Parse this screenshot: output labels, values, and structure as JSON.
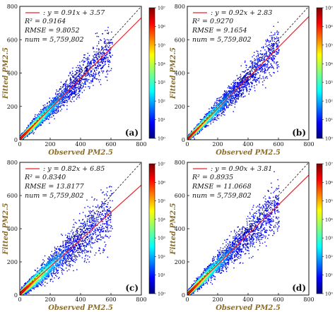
{
  "chart_data": [
    {
      "type": "scatter",
      "subtype": "density-scatter",
      "panel_label": "(a)",
      "xlabel": "Observed PM2.5",
      "ylabel": "Fitted PM2.5",
      "xlim": [
        0,
        800
      ],
      "ylim": [
        0,
        800
      ],
      "xticks": [
        "0",
        "200",
        "400",
        "600",
        "800"
      ],
      "yticks": [
        "0",
        "200",
        "400",
        "600",
        "800"
      ],
      "fit_line": {
        "label": "y = 0.91x + 3.57",
        "slope": 0.91,
        "intercept": 3.57,
        "color": "#e8242a"
      },
      "reference_line": {
        "label": "1:1",
        "slope": 1,
        "intercept": 0,
        "style": "dashed"
      },
      "stats": {
        "r2": "R² = 0.9164",
        "rmse": "RMSE = 9.8052",
        "num": "num = 5,759,802"
      },
      "density_colorbar": {
        "scale": "log",
        "range": [
          1,
          10000000
        ],
        "ticks": [
          "10⁰",
          "10¹",
          "10²",
          "10³",
          "10⁴",
          "10⁵",
          "10⁶",
          "10⁷"
        ]
      }
    },
    {
      "type": "scatter",
      "subtype": "density-scatter",
      "panel_label": "(b)",
      "xlabel": "Observed PM2.5",
      "ylabel": "Fitted PM2.5",
      "xlim": [
        0,
        800
      ],
      "ylim": [
        0,
        800
      ],
      "xticks": [
        "0",
        "200",
        "400",
        "600",
        "800"
      ],
      "yticks": [
        "0",
        "200",
        "400",
        "600",
        "800"
      ],
      "fit_line": {
        "label": "y = 0.92x + 2.83",
        "slope": 0.92,
        "intercept": 2.83,
        "color": "#e8242a"
      },
      "reference_line": {
        "label": "1:1",
        "slope": 1,
        "intercept": 0,
        "style": "dashed"
      },
      "stats": {
        "r2": "R² = 0.9270",
        "rmse": "RMSE = 9.1654",
        "num": "num = 5,759,802"
      },
      "density_colorbar": {
        "scale": "log",
        "range": [
          1,
          10000000
        ],
        "ticks": [
          "10⁰",
          "10¹",
          "10²",
          "10³",
          "10⁴",
          "10⁵",
          "10⁶",
          "10⁷"
        ]
      }
    },
    {
      "type": "scatter",
      "subtype": "density-scatter",
      "panel_label": "(c)",
      "xlabel": "Observed PM2.5",
      "ylabel": "Fitted PM2.5",
      "xlim": [
        0,
        800
      ],
      "ylim": [
        0,
        800
      ],
      "xticks": [
        "0",
        "200",
        "400",
        "600",
        "800"
      ],
      "yticks": [
        "0",
        "200",
        "400",
        "600",
        "800"
      ],
      "fit_line": {
        "label": "y = 0.82x + 6.85",
        "slope": 0.82,
        "intercept": 6.85,
        "color": "#e8242a"
      },
      "reference_line": {
        "label": "1:1",
        "slope": 1,
        "intercept": 0,
        "style": "dashed"
      },
      "stats": {
        "r2": "R² = 0.8340",
        "rmse": "RMSE = 13.8177",
        "num": "num = 5,759,802"
      },
      "density_colorbar": {
        "scale": "log",
        "range": [
          1,
          10000000
        ],
        "ticks": [
          "10⁰",
          "10¹",
          "10²",
          "10³",
          "10⁴",
          "10⁵",
          "10⁶",
          "10⁷"
        ]
      }
    },
    {
      "type": "scatter",
      "subtype": "density-scatter",
      "panel_label": "(d)",
      "xlabel": "Observed PM2.5",
      "ylabel": "Fitted PM2.5",
      "xlim": [
        0,
        800
      ],
      "ylim": [
        0,
        800
      ],
      "xticks": [
        "0",
        "200",
        "400",
        "600",
        "800"
      ],
      "yticks": [
        "0",
        "200",
        "400",
        "600",
        "800"
      ],
      "fit_line": {
        "label": "y = 0.90x + 3.81",
        "slope": 0.9,
        "intercept": 3.81,
        "color": "#e8242a"
      },
      "reference_line": {
        "label": "1:1",
        "slope": 1,
        "intercept": 0,
        "style": "dashed"
      },
      "stats": {
        "r2": "R² = 0.8935",
        "rmse": "RMSE = 11.0668",
        "num": "num = 5,759,802"
      },
      "density_colorbar": {
        "scale": "log",
        "range": [
          1,
          10000000
        ],
        "ticks": [
          "10⁰",
          "10¹",
          "10²",
          "10³",
          "10⁴",
          "10⁵",
          "10⁶",
          "10⁷"
        ]
      }
    }
  ]
}
